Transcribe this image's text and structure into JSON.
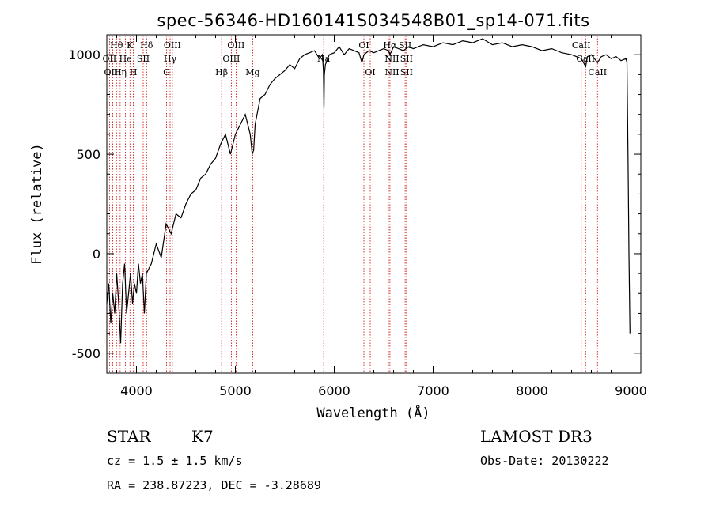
{
  "chart_data": {
    "type": "line",
    "title": "spec-56346-HD160141S034548B01_sp14-071.fits",
    "xlabel": "Wavelength (Å)",
    "ylabel": "Flux (relative)",
    "xlim": [
      3700,
      9100
    ],
    "ylim": [
      -600,
      1100
    ],
    "x_ticks": [
      4000,
      5000,
      6000,
      7000,
      8000,
      9000
    ],
    "y_ticks": [
      -500,
      0,
      500,
      1000
    ],
    "grid": false,
    "series": [
      {
        "x": [
          3700,
          3720,
          3740,
          3760,
          3780,
          3800,
          3820,
          3840,
          3860,
          3880,
          3900,
          3920,
          3940,
          3960,
          3980,
          4000,
          4020,
          4040,
          4060,
          4080,
          4100,
          4150,
          4200,
          4250,
          4300,
          4350,
          4400,
          4450,
          4500,
          4550,
          4600,
          4650,
          4700,
          4750,
          4800,
          4850,
          4900,
          4950,
          5000,
          5050,
          5100,
          5150,
          5170,
          5185,
          5200,
          5250,
          5300,
          5350,
          5400,
          5450,
          5500,
          5550,
          5600,
          5650,
          5700,
          5750,
          5800,
          5850,
          5880,
          5890,
          5896,
          5900,
          5910,
          5950,
          6000,
          6050,
          6100,
          6150,
          6200,
          6250,
          6280,
          6300,
          6350,
          6400,
          6450,
          6500,
          6550,
          6563,
          6600,
          6650,
          6700,
          6750,
          6800,
          6900,
          7000,
          7100,
          7200,
          7300,
          7400,
          7500,
          7600,
          7700,
          7800,
          7900,
          8000,
          8100,
          8200,
          8300,
          8400,
          8450,
          8500,
          8542,
          8560,
          8600,
          8662,
          8700,
          8750,
          8800,
          8850,
          8900,
          8950,
          8960,
          8970,
          8980,
          8990
        ],
        "values": [
          -250,
          -150,
          -350,
          -200,
          -300,
          -100,
          -250,
          -450,
          -150,
          -50,
          -300,
          -200,
          -100,
          -250,
          -150,
          -200,
          -50,
          -150,
          -100,
          -300,
          -100,
          -50,
          50,
          -20,
          150,
          100,
          200,
          180,
          250,
          300,
          320,
          380,
          400,
          450,
          480,
          550,
          600,
          500,
          600,
          650,
          700,
          600,
          500,
          520,
          650,
          780,
          800,
          850,
          880,
          900,
          920,
          950,
          930,
          980,
          1000,
          1010,
          1020,
          980,
          1000,
          920,
          730,
          900,
          950,
          1000,
          1010,
          1040,
          1000,
          1030,
          1020,
          1010,
          960,
          1000,
          1020,
          1010,
          1020,
          1030,
          1020,
          1000,
          1040,
          1030,
          1020,
          1040,
          1030,
          1050,
          1040,
          1060,
          1050,
          1070,
          1060,
          1080,
          1050,
          1060,
          1040,
          1050,
          1040,
          1020,
          1030,
          1010,
          1000,
          990,
          980,
          940,
          990,
          1000,
          960,
          990,
          1000,
          980,
          990,
          970,
          980,
          960,
          500,
          0,
          -400
        ]
      }
    ],
    "spectral_lines": [
      {
        "name": "Hθ",
        "x": 3798,
        "row": 0
      },
      {
        "name": "K",
        "x": 3934,
        "row": 0
      },
      {
        "name": "Hδ",
        "x": 4102,
        "row": 0
      },
      {
        "name": "OIII",
        "x": 4363,
        "row": 0
      },
      {
        "name": "OIII",
        "x": 5007,
        "row": 0
      },
      {
        "name": "OI",
        "x": 6300,
        "row": 0
      },
      {
        "name": "Hα",
        "x": 6563,
        "row": 0
      },
      {
        "name": "SII",
        "x": 6717,
        "row": 0
      },
      {
        "name": "CaII",
        "x": 8498,
        "row": 0
      },
      {
        "name": "OII",
        "x": 3727,
        "row": 1
      },
      {
        "name": "He",
        "x": 3889,
        "row": 1
      },
      {
        "name": "SII",
        "x": 4068,
        "row": 1
      },
      {
        "name": "Hγ",
        "x": 4340,
        "row": 1
      },
      {
        "name": "OIII",
        "x": 4959,
        "row": 1
      },
      {
        "name": "Na",
        "x": 5893,
        "row": 1
      },
      {
        "name": "N",
        "x": 6548,
        "row": 1
      },
      {
        "name": "NII",
        "x": 6584,
        "row": 1
      },
      {
        "name": "SII",
        "x": 6731,
        "row": 1
      },
      {
        "name": "CaII",
        "x": 8542,
        "row": 1
      },
      {
        "name": "OIII",
        "x": 3760,
        "row": 2
      },
      {
        "name": "Hη",
        "x": 3835,
        "row": 2
      },
      {
        "name": "H",
        "x": 3969,
        "row": 2
      },
      {
        "name": "G",
        "x": 4305,
        "row": 2
      },
      {
        "name": "Hβ",
        "x": 4861,
        "row": 2
      },
      {
        "name": "Mg",
        "x": 5175,
        "row": 2
      },
      {
        "name": "OI",
        "x": 6364,
        "row": 2
      },
      {
        "name": "NII",
        "x": 6584,
        "row": 2
      },
      {
        "name": "SII",
        "x": 6731,
        "row": 2
      },
      {
        "name": "CaII",
        "x": 8662,
        "row": 2
      }
    ],
    "line_marker_color": "#cc0000",
    "spectrum_color": "#000000"
  },
  "info": {
    "object_type": "STAR",
    "subclass": "K7",
    "survey": "LAMOST DR3",
    "redshift": "cz = 1.5 ± 1.5 km/s",
    "obs_date": "Obs-Date: 20130222",
    "coords": "RA = 238.87223, DEC =  -3.28689"
  }
}
